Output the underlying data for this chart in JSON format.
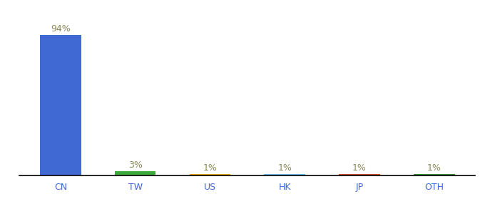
{
  "categories": [
    "CN",
    "TW",
    "US",
    "HK",
    "JP",
    "OTH"
  ],
  "values": [
    94,
    3,
    1,
    1,
    1,
    1
  ],
  "labels": [
    "94%",
    "3%",
    "1%",
    "1%",
    "1%",
    "1%"
  ],
  "bar_colors": [
    "#4169d4",
    "#3daa3d",
    "#e8a020",
    "#62bfed",
    "#c94a2a",
    "#3a8c3a"
  ],
  "tick_color": "#4169d4",
  "label_color": "#888855",
  "ylim": [
    0,
    100
  ],
  "background_color": "#ffffff",
  "label_fontsize": 9,
  "tick_fontsize": 9,
  "bar_width": 0.55
}
